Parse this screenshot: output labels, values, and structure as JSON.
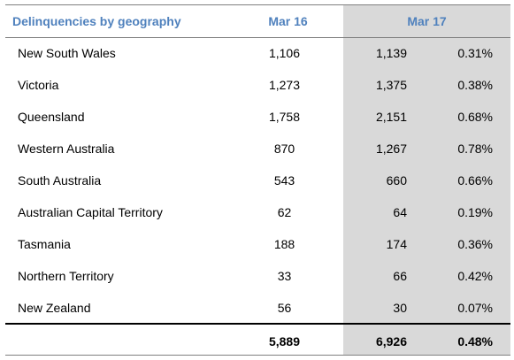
{
  "header": {
    "title": "Delinquencies by geography",
    "col_mar16": "Mar 16",
    "col_mar17": "Mar 17"
  },
  "rows": [
    {
      "region": "New South Wales",
      "mar16": "1,106",
      "mar17": "1,139",
      "pct": "0.31%"
    },
    {
      "region": "Victoria",
      "mar16": "1,273",
      "mar17": "1,375",
      "pct": "0.38%"
    },
    {
      "region": "Queensland",
      "mar16": "1,758",
      "mar17": "2,151",
      "pct": "0.68%"
    },
    {
      "region": "Western Australia",
      "mar16": "870",
      "mar17": "1,267",
      "pct": "0.78%"
    },
    {
      "region": "South Australia",
      "mar16": "543",
      "mar17": "660",
      "pct": "0.66%"
    },
    {
      "region": "Australian Capital Territory",
      "mar16": "62",
      "mar17": "64",
      "pct": "0.19%"
    },
    {
      "region": "Tasmania",
      "mar16": "188",
      "mar17": "174",
      "pct": "0.36%"
    },
    {
      "region": "Northern Territory",
      "mar16": "33",
      "mar17": "66",
      "pct": "0.42%"
    },
    {
      "region": "New Zealand",
      "mar16": "56",
      "mar17": "30",
      "pct": "0.07%"
    }
  ],
  "total": {
    "mar16": "5,889",
    "mar17": "6,926",
    "pct": "0.48%"
  },
  "colors": {
    "header_text": "#4f81bd",
    "shade": "#d9d9d9",
    "rule": "#7f7f7f"
  }
}
